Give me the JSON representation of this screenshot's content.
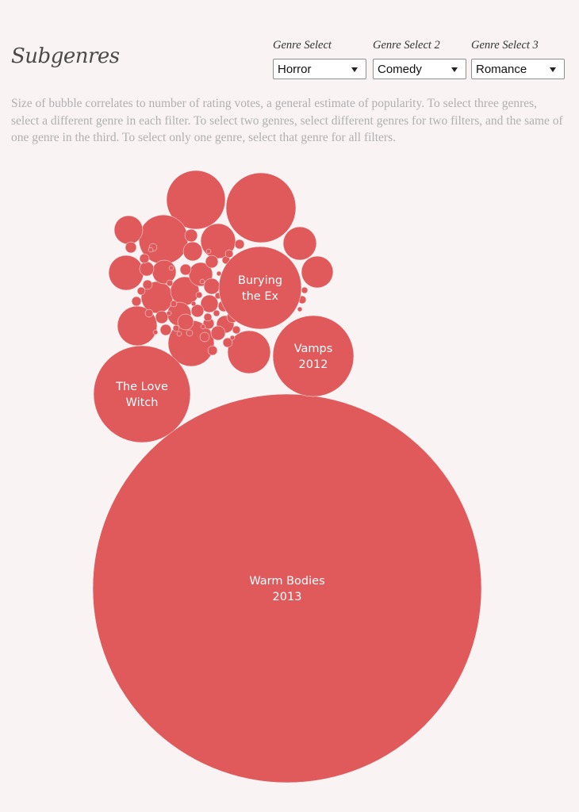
{
  "header": {
    "title": "Subgenres",
    "description": "Size of bubble correlates to number of rating votes, a general estimate of popularity. To select three genres, select a different genre in each filter. To select two genres, select different genres for two filters, and the same of one genre in the third. To select only one genre, select that genre for all filters."
  },
  "filters": [
    {
      "label": "Genre Select",
      "value": "Horror"
    },
    {
      "label": "Genre Select 2",
      "value": "Comedy"
    },
    {
      "label": "Genre Select 3",
      "value": "Romance"
    }
  ],
  "colors": {
    "bubble": "#e05a5c",
    "background": "#f9f3f3"
  },
  "chart_data": {
    "type": "bubble",
    "size_measure": "number of rating votes (relative)",
    "labeled_bubbles": [
      {
        "label": [
          "Warm Bodies",
          "2013"
        ],
        "relative_size": 245
      },
      {
        "label": [
          "The Love",
          "Witch"
        ],
        "relative_size": 61
      },
      {
        "label": [
          "Vamps",
          "2012"
        ],
        "relative_size": 51
      },
      {
        "label": [
          "Burying",
          "the Ex"
        ],
        "relative_size": 52
      }
    ],
    "unlabeled_bubble_sizes": [
      44,
      37,
      31,
      29,
      27,
      25,
      22,
      22,
      21,
      20,
      20,
      18,
      18,
      15,
      15,
      15,
      12,
      11,
      11,
      10,
      10,
      9,
      9,
      8,
      8,
      8,
      8,
      7,
      7,
      7,
      7,
      7,
      7,
      6,
      6,
      6,
      6,
      6,
      6,
      6,
      5,
      5,
      5,
      5,
      5,
      5,
      5,
      5,
      4,
      4,
      4,
      4,
      4,
      4,
      4,
      4,
      4,
      3,
      3,
      3,
      3,
      3,
      3,
      3,
      3,
      3,
      3,
      3,
      3,
      3
    ]
  }
}
